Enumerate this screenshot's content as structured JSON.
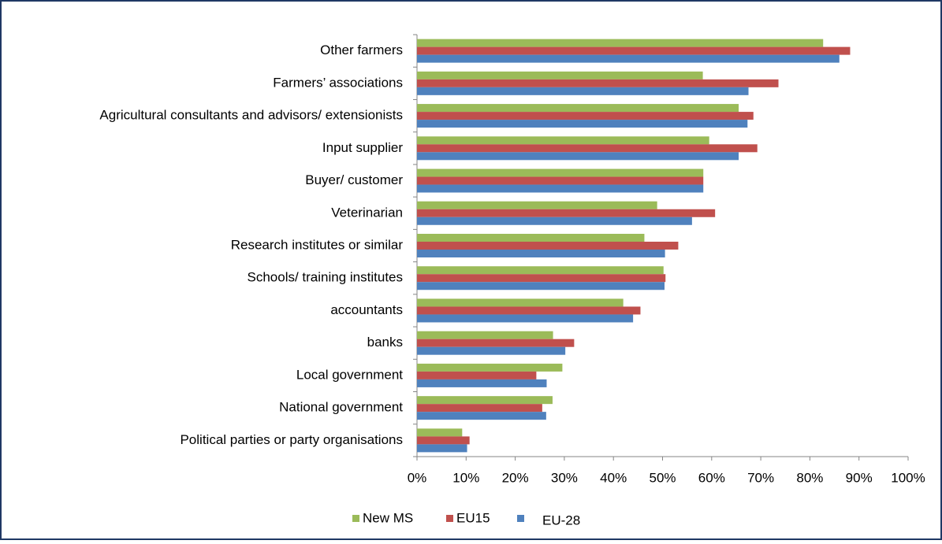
{
  "chart_data": {
    "type": "hbar",
    "categories": [
      "Other farmers",
      "Farmers’ associations",
      "Agricultural consultants and advisors/ extensionists",
      "Input supplier",
      "Buyer/ customer",
      "Veterinarian",
      "Research institutes or similar",
      "Schools/ training institutes",
      "accountants",
      "banks",
      "Local government",
      "National government",
      "Political parties or party organisations"
    ],
    "series": [
      {
        "name": "New MS",
        "color": "#9bbb59",
        "values": [
          82.7,
          58.2,
          65.5,
          59.5,
          58.3,
          48.9,
          46.3,
          50.2,
          42,
          27.7,
          29.6,
          27.6,
          9.2
        ]
      },
      {
        "name": "EU15",
        "color": "#c0504d",
        "values": [
          88.2,
          73.6,
          68.5,
          69.3,
          58.3,
          60.7,
          53.2,
          50.6,
          45.5,
          32,
          24.3,
          25.5,
          10.7
        ]
      },
      {
        "name": "EU-28",
        "color": "#4f81bd",
        "values": [
          86,
          67.5,
          67.3,
          65.5,
          58.3,
          56,
          50.5,
          50.4,
          44,
          30.2,
          26.4,
          26.3,
          10.2
        ]
      }
    ],
    "xlim": [
      0,
      100
    ],
    "xticks": [
      {
        "value": 0,
        "label": "0%"
      },
      {
        "value": 10,
        "label": "10%"
      },
      {
        "value": 20,
        "label": "20%"
      },
      {
        "value": 30,
        "label": "30%"
      },
      {
        "value": 40,
        "label": "40%"
      },
      {
        "value": 50,
        "label": "50%"
      },
      {
        "value": 60,
        "label": "60%"
      },
      {
        "value": 70,
        "label": "70%"
      },
      {
        "value": 80,
        "label": "80%"
      },
      {
        "value": 90,
        "label": "90%"
      },
      {
        "value": 100,
        "label": "100%"
      }
    ],
    "grid": false,
    "legend": "bottom"
  }
}
